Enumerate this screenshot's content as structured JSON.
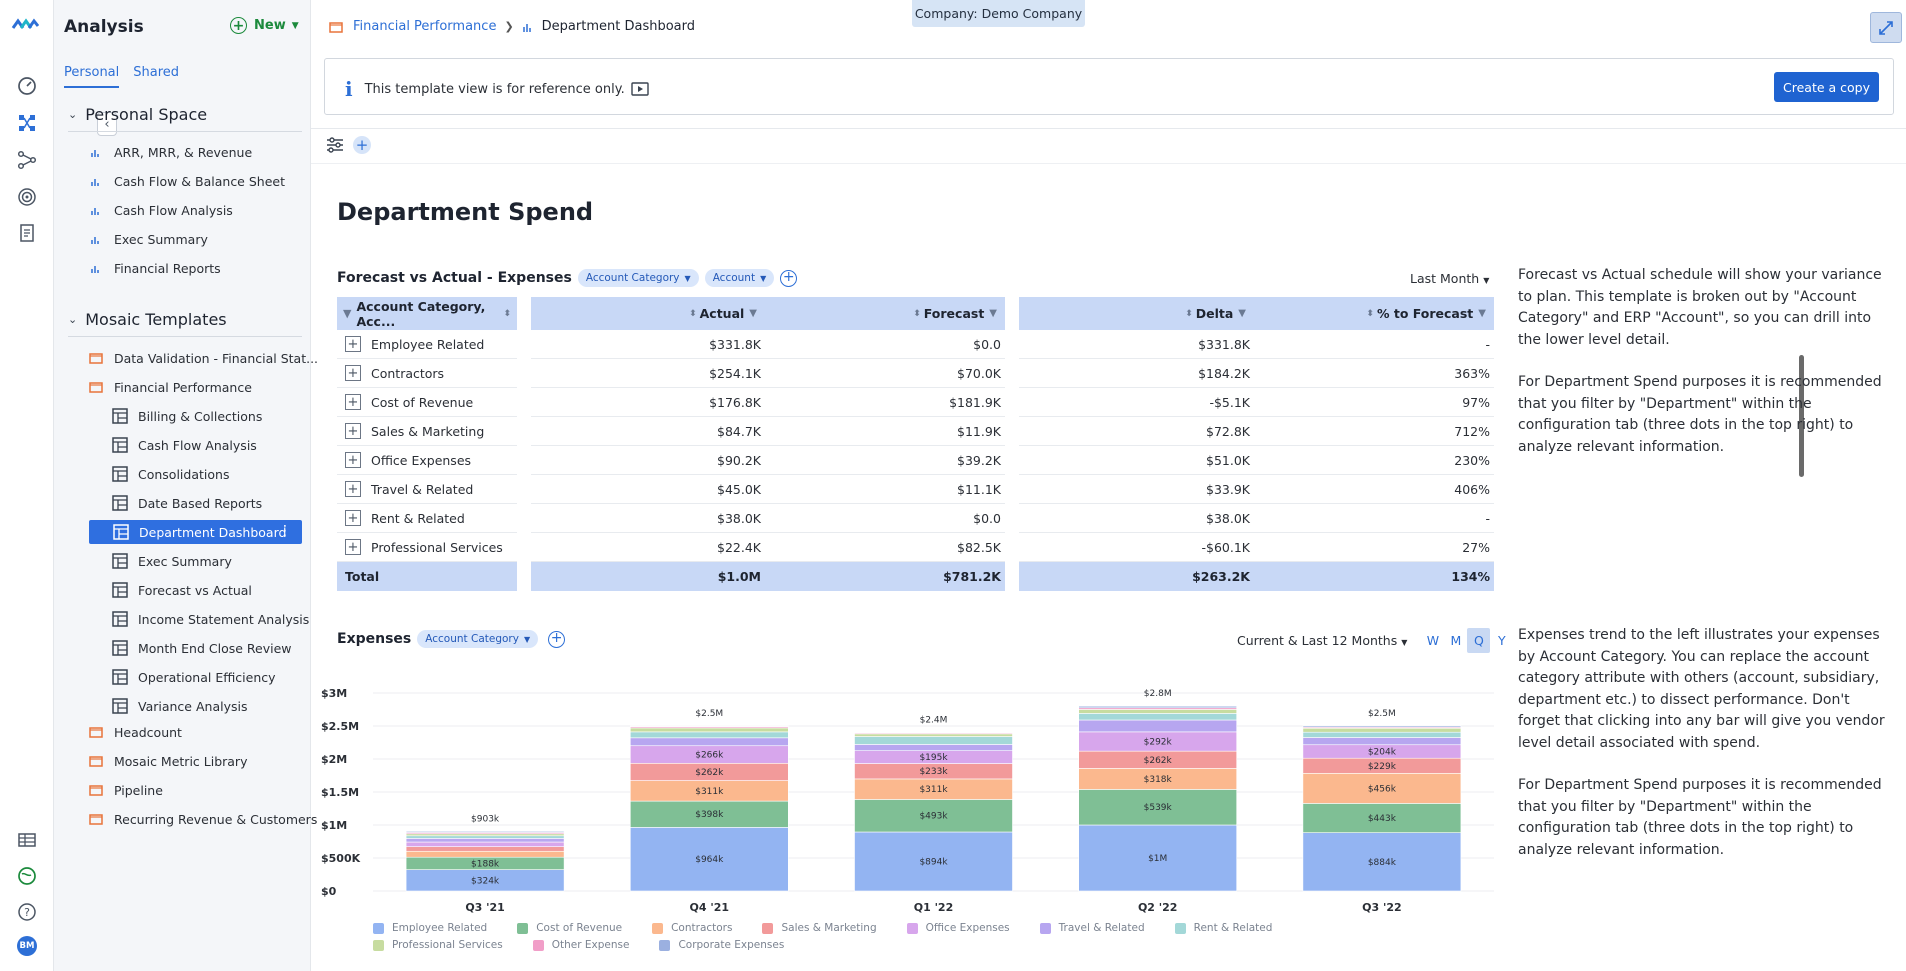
{
  "app": {
    "title": "Analysis",
    "new_label": "New"
  },
  "sidebar": {
    "tabs": [
      {
        "label": "Personal"
      },
      {
        "label": "Shared"
      }
    ],
    "personal_space": {
      "title": "Personal Space",
      "items": [
        {
          "label": "ARR, MRR, & Revenue"
        },
        {
          "label": "Cash Flow & Balance Sheet"
        },
        {
          "label": "Cash Flow Analysis"
        },
        {
          "label": "Exec Summary"
        },
        {
          "label": "Financial Reports"
        }
      ]
    },
    "mosaic_templates": {
      "title": "Mosaic Templates",
      "folders": [
        {
          "label": "Data Validation - Financial Stat..."
        },
        {
          "label": "Financial Performance"
        }
      ],
      "dashboards": [
        {
          "label": "Billing & Collections"
        },
        {
          "label": "Cash Flow Analysis"
        },
        {
          "label": "Consolidations"
        },
        {
          "label": "Date Based Reports"
        },
        {
          "label": "Department Dashboard",
          "selected": true
        },
        {
          "label": "Exec Summary"
        },
        {
          "label": "Forecast vs Actual"
        },
        {
          "label": "Income Statement Analysis"
        },
        {
          "label": "Month End Close Review"
        },
        {
          "label": "Operational Efficiency"
        },
        {
          "label": "Variance Analysis"
        }
      ],
      "more_folders": [
        {
          "label": "Headcount"
        },
        {
          "label": "Mosaic Metric Library"
        },
        {
          "label": "Pipeline"
        },
        {
          "label": "Recurring Revenue & Customers"
        }
      ]
    }
  },
  "rail": {
    "avatar_initials": "BM"
  },
  "header": {
    "breadcrumb_parent": "Financial Performance",
    "breadcrumb_current": "Department Dashboard",
    "company": "Company: Demo Company"
  },
  "banner": {
    "text": "This template view is for reference only.",
    "button": "Create a copy"
  },
  "page": {
    "title": "Department Spend"
  },
  "table_widget": {
    "title": "Forecast vs Actual - Expenses",
    "filters": [
      "Account Category",
      "Account"
    ],
    "period": "Last Month",
    "columns": {
      "name": "Account Category, Acc...",
      "actual": "Actual",
      "forecast": "Forecast",
      "delta": "Delta",
      "pct": "% to Forecast"
    },
    "rows": [
      {
        "name": "Employee Related",
        "actual": "$331.8K",
        "forecast": "$0.0",
        "delta": "$331.8K",
        "pct": "-"
      },
      {
        "name": "Contractors",
        "actual": "$254.1K",
        "forecast": "$70.0K",
        "delta": "$184.2K",
        "pct": "363%"
      },
      {
        "name": "Cost of Revenue",
        "actual": "$176.8K",
        "forecast": "$181.9K",
        "delta": "-$5.1K",
        "pct": "97%"
      },
      {
        "name": "Sales & Marketing",
        "actual": "$84.7K",
        "forecast": "$11.9K",
        "delta": "$72.8K",
        "pct": "712%"
      },
      {
        "name": "Office Expenses",
        "actual": "$90.2K",
        "forecast": "$39.2K",
        "delta": "$51.0K",
        "pct": "230%"
      },
      {
        "name": "Travel & Related",
        "actual": "$45.0K",
        "forecast": "$11.1K",
        "delta": "$33.9K",
        "pct": "406%"
      },
      {
        "name": "Rent & Related",
        "actual": "$38.0K",
        "forecast": "$0.0",
        "delta": "$38.0K",
        "pct": "-"
      },
      {
        "name": "Professional Services",
        "actual": "$22.4K",
        "forecast": "$82.5K",
        "delta": "-$60.1K",
        "pct": "27%"
      }
    ],
    "total": {
      "name": "Total",
      "actual": "$1.0M",
      "forecast": "$781.2K",
      "delta": "$263.2K",
      "pct": "134%"
    }
  },
  "notes": {
    "table_p1": "Forecast vs Actual schedule will show your variance to plan. This template is broken out by \"Account Category\" and ERP \"Account\", so you can drill into the lower level detail.",
    "table_p2": "For Department Spend purposes it is recommended that you filter by \"Department\" within the configuration tab (three dots in the top right) to analyze relevant information.",
    "chart_p1": "Expenses trend to the left illustrates your expenses by Account Category. You can replace the account category attribute with others (account, subsidiary, department etc.) to dissect performance. Don't forget that clicking into any bar will give you vendor level detail associated with spend.",
    "chart_p2": "For Department Spend purposes it is recommended that you filter by \"Department\" within the configuration tab (three dots in the top right) to analyze relevant information."
  },
  "chart_widget": {
    "title": "Expenses",
    "filter": "Account Category",
    "range": "Current & Last 12 Months",
    "periods": [
      "W",
      "M",
      "Q",
      "Y"
    ],
    "active_period": "Q"
  },
  "colors": {
    "Employee Related": "#93b4f2",
    "Cost of Revenue": "#7fbf95",
    "Contractors": "#fbb88e",
    "Sales & Marketing": "#f29a9a",
    "Office Expenses": "#d7a6ec",
    "Travel & Related": "#b7a6f0",
    "Rent & Related": "#a3d8d8",
    "Professional Services": "#c7dca0",
    "Other Expense": "#f19ec8",
    "Corporate Expenses": "#9bb0e0"
  },
  "chart_data": {
    "type": "bar",
    "stacked": true,
    "categories": [
      "Q3 '21",
      "Q4 '21",
      "Q1 '22",
      "Q2 '22",
      "Q3 '22"
    ],
    "y_ticks": [
      "$0",
      "$500K",
      "$1M",
      "$1.5M",
      "$2M",
      "$2.5M",
      "$3M"
    ],
    "ylim": [
      0,
      3000000
    ],
    "totals": [
      "$903k",
      "$2.5M",
      "$2.4M",
      "$2.8M",
      "$2.5M"
    ],
    "series": [
      {
        "name": "Employee Related",
        "values": [
          324000,
          964000,
          894000,
          1000000,
          884000
        ],
        "labels": [
          "$324k",
          "$964k",
          "$894k",
          "$1M",
          "$884k"
        ]
      },
      {
        "name": "Cost of Revenue",
        "values": [
          188000,
          398000,
          493000,
          539000,
          443000
        ],
        "labels": [
          "$188k",
          "$398k",
          "$493k",
          "$539k",
          "$443k"
        ]
      },
      {
        "name": "Contractors",
        "values": [
          90000,
          311000,
          311000,
          318000,
          456000
        ],
        "labels": [
          "",
          "$311k",
          "$311k",
          "$318k",
          "$456k"
        ]
      },
      {
        "name": "Sales & Marketing",
        "values": [
          70000,
          262000,
          233000,
          262000,
          229000
        ],
        "labels": [
          "",
          "$262k",
          "$233k",
          "$262k",
          "$229k"
        ]
      },
      {
        "name": "Office Expenses",
        "values": [
          70000,
          266000,
          195000,
          292000,
          204000
        ],
        "labels": [
          "",
          "$266k",
          "$195k",
          "$292k",
          "$204k"
        ]
      },
      {
        "name": "Travel & Related",
        "values": [
          55000,
          120000,
          95000,
          180000,
          110000
        ],
        "labels": [
          "",
          "",
          "",
          "",
          ""
        ]
      },
      {
        "name": "Rent & Related",
        "values": [
          40000,
          90000,
          120000,
          100000,
          80000
        ],
        "labels": [
          "",
          "",
          "",
          "",
          ""
        ]
      },
      {
        "name": "Professional Services",
        "values": [
          30000,
          60000,
          40000,
          60000,
          60000
        ],
        "labels": [
          "",
          "",
          "",
          "",
          ""
        ]
      },
      {
        "name": "Other Expense",
        "values": [
          20000,
          20000,
          15000,
          25000,
          15000
        ],
        "labels": [
          "",
          "",
          "",
          "",
          ""
        ]
      },
      {
        "name": "Corporate Expenses",
        "values": [
          16000,
          9000,
          4000,
          24000,
          19000
        ],
        "labels": [
          "",
          "",
          "",
          "",
          ""
        ]
      }
    ]
  }
}
